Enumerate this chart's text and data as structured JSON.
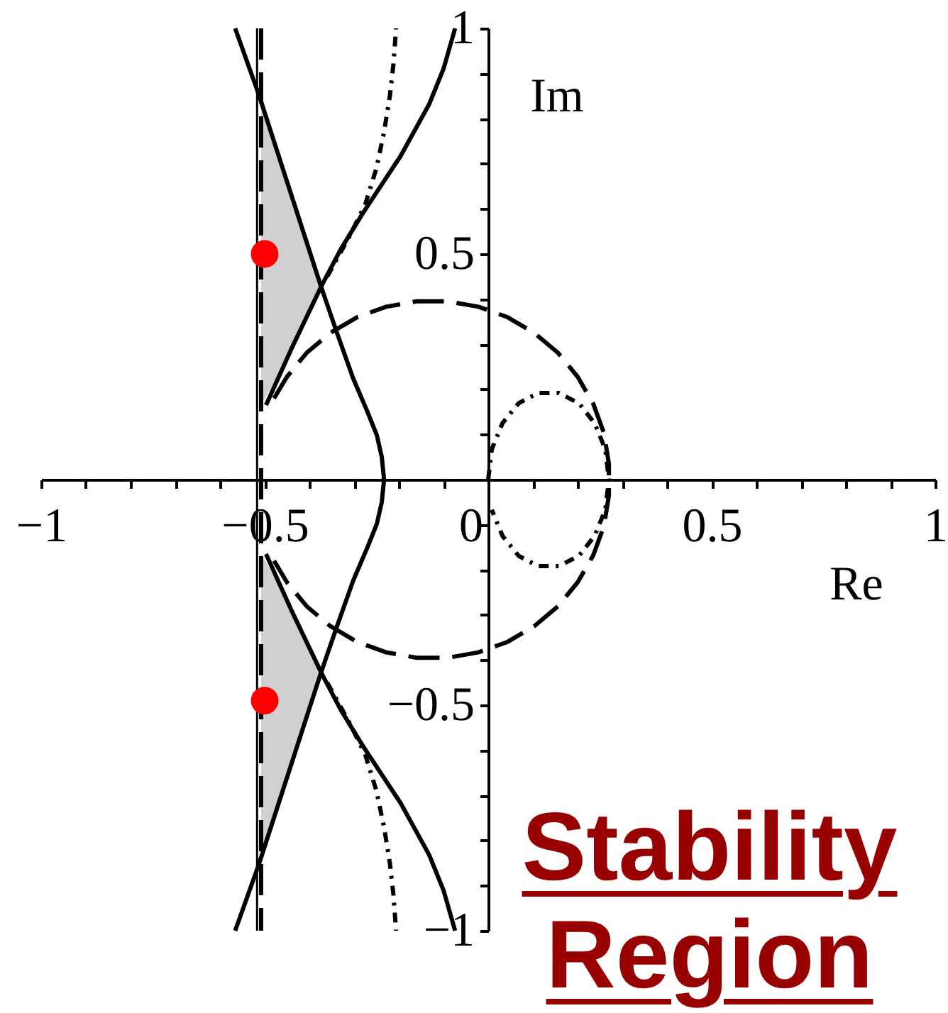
{
  "chart_data": {
    "type": "line",
    "title": "Stability Region",
    "xlabel": "Re",
    "ylabel": "Im",
    "xlim": [
      -1,
      1
    ],
    "ylim": [
      -1,
      1
    ],
    "xticks": [
      -1,
      {
        "value": -0.9,
        "label": null
      },
      {
        "value": -0.8,
        "label": null
      },
      {
        "value": -0.7,
        "label": null
      },
      {
        "value": -0.6,
        "label": null
      },
      -0.5,
      {
        "value": -0.4,
        "label": null
      },
      {
        "value": -0.3,
        "label": null
      },
      {
        "value": -0.2,
        "label": null
      },
      {
        "value": -0.1,
        "label": null
      },
      0,
      {
        "value": 0.1,
        "label": null
      },
      {
        "value": 0.2,
        "label": null
      },
      {
        "value": 0.3,
        "label": null
      },
      {
        "value": 0.4,
        "label": null
      },
      0.5,
      {
        "value": 0.6,
        "label": null
      },
      {
        "value": 0.7,
        "label": null
      },
      {
        "value": 0.8,
        "label": null
      },
      {
        "value": 0.9,
        "label": null
      },
      1
    ],
    "yticks": [
      -1,
      {
        "value": -0.9,
        "label": null
      },
      {
        "value": -0.8,
        "label": null
      },
      {
        "value": -0.7,
        "label": null
      },
      {
        "value": -0.6,
        "label": null
      },
      -0.5,
      {
        "value": -0.4,
        "label": null
      },
      {
        "value": -0.3,
        "label": null
      },
      {
        "value": -0.2,
        "label": null
      },
      {
        "value": -0.1,
        "label": null
      },
      {
        "value": 0.1,
        "label": null
      },
      {
        "value": 0.2,
        "label": null
      },
      {
        "value": 0.3,
        "label": null
      },
      {
        "value": 0.4,
        "label": null
      },
      0.5,
      {
        "value": 0.6,
        "label": null
      },
      {
        "value": 0.7,
        "label": null
      },
      {
        "value": 0.8,
        "label": null
      },
      {
        "value": 0.9,
        "label": null
      },
      1
    ],
    "ref_lines": [
      {
        "axis": "x",
        "value": -0.517,
        "color": "#000000",
        "line_style": "solid"
      },
      {
        "axis": "x",
        "value": -0.508,
        "color": "#000000",
        "line_style": "dashed"
      }
    ],
    "series": [
      {
        "color": "#d0d0d0",
        "x": [
          -0.508,
          -0.45,
          -0.4,
          -0.373
        ],
        "values": [
          null,
          null,
          null,
          null
        ],
        "lower": [
          0.165,
          0.263,
          0.371,
          0.429
        ],
        "upper": [
          0.83,
          0.66,
          0.507,
          0.429
        ]
      },
      {
        "color": "#d0d0d0",
        "x": [
          -0.508,
          -0.45,
          -0.4,
          -0.373
        ],
        "values": [
          null,
          null,
          null,
          null
        ],
        "lower": [
          -0.83,
          -0.66,
          -0.507,
          -0.429
        ],
        "upper": [
          -0.165,
          -0.263,
          -0.371,
          -0.429
        ]
      },
      {
        "color": "#000000",
        "line_style": "solid",
        "x": [
          -0.566,
          -0.513,
          -0.445,
          -0.376,
          -0.34,
          -0.302,
          -0.27,
          -0.249,
          -0.238,
          -0.233,
          -0.238,
          -0.249,
          -0.27,
          -0.302,
          -0.34,
          -0.376,
          -0.445,
          -0.513,
          -0.566
        ],
        "values": [
          1,
          0.853,
          0.645,
          0.434,
          0.33,
          0.224,
          0.15,
          0.098,
          0.05,
          0,
          -0.05,
          -0.098,
          -0.15,
          -0.224,
          -0.33,
          -0.434,
          -0.645,
          -0.853,
          -1
        ]
      },
      {
        "color": "#000000",
        "line_style": "solid",
        "x": [
          -0.497,
          -0.44,
          -0.373,
          -0.33,
          -0.28,
          -0.196,
          -0.132,
          -0.1,
          -0.074
        ],
        "values": [
          0.165,
          0.29,
          0.429,
          0.51,
          0.591,
          0.717,
          0.832,
          0.91,
          1
        ]
      },
      {
        "color": "#000000",
        "line_style": "solid",
        "x": [
          -0.497,
          -0.44,
          -0.373,
          -0.33,
          -0.28,
          -0.196,
          -0.132,
          -0.1,
          -0.074
        ],
        "values": [
          -0.165,
          -0.29,
          -0.429,
          -0.51,
          -0.591,
          -0.717,
          -0.832,
          -0.91,
          -1
        ]
      },
      {
        "color": "#000000",
        "line_style": "dotted",
        "x": [
          -0.36,
          -0.31,
          -0.275,
          -0.25,
          -0.233,
          -0.22,
          -0.212,
          -0.206
        ],
        "values": [
          0.45,
          0.54,
          0.61,
          0.69,
          0.77,
          0.85,
          0.92,
          1
        ]
      },
      {
        "color": "#000000",
        "line_style": "dotted",
        "x": [
          -0.36,
          -0.31,
          -0.275,
          -0.25,
          -0.233,
          -0.22,
          -0.212,
          -0.206
        ],
        "values": [
          -0.45,
          -0.54,
          -0.61,
          -0.69,
          -0.77,
          -0.85,
          -0.92,
          -1
        ]
      },
      {
        "color": "#000000",
        "line_style": "dashed",
        "x": [
          -0.479,
          -0.45,
          -0.406,
          -0.353,
          -0.293,
          -0.228,
          -0.16,
          -0.09,
          -0.022,
          0.043,
          0.103,
          0.156,
          0.2,
          0.235,
          0.259,
          0.27,
          0.27,
          0.259,
          0.235,
          0.2,
          0.156,
          0.103,
          0.043,
          -0.022,
          -0.09,
          -0.16,
          -0.228,
          -0.293,
          -0.353,
          -0.406,
          -0.45,
          -0.479
        ],
        "values": [
          0.18,
          0.228,
          0.281,
          0.325,
          0.36,
          0.383,
          0.395,
          0.395,
          0.383,
          0.36,
          0.325,
          0.281,
          0.228,
          0.168,
          0.103,
          0.035,
          -0.035,
          -0.103,
          -0.168,
          -0.228,
          -0.281,
          -0.325,
          -0.36,
          -0.383,
          -0.395,
          -0.395,
          -0.383,
          -0.36,
          -0.325,
          -0.281,
          -0.228,
          -0.18
        ]
      },
      {
        "color": "#000000",
        "line_style": "dotted",
        "x": [
          0,
          0.008,
          0.032,
          0.068,
          0.112,
          0.158,
          0.203,
          0.238,
          0.262,
          0.27,
          0.262,
          0.238,
          0.203,
          0.158,
          0.112,
          0.068,
          0.032,
          0.008
        ],
        "values": [
          0,
          0.067,
          0.125,
          0.169,
          0.192,
          0.192,
          0.169,
          0.125,
          0.067,
          0,
          -0.067,
          -0.125,
          -0.169,
          -0.192,
          -0.192,
          -0.169,
          -0.125,
          -0.067
        ]
      },
      {
        "type": "scatter",
        "color": "#ff0000",
        "marker": "circle",
        "x": [
          -0.5,
          -0.5
        ],
        "values": [
          0.5,
          -0.49
        ]
      }
    ]
  }
}
